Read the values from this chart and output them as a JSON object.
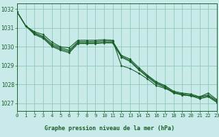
{
  "title": "Graphe pression niveau de la mer (hPa)",
  "xlim": [
    0,
    23
  ],
  "ylim": [
    1026.6,
    1032.3
  ],
  "yticks": [
    1027,
    1028,
    1029,
    1030,
    1031,
    1032
  ],
  "xticks": [
    0,
    1,
    2,
    3,
    4,
    5,
    6,
    7,
    8,
    9,
    10,
    11,
    12,
    13,
    14,
    15,
    16,
    17,
    18,
    19,
    20,
    21,
    22,
    23
  ],
  "bg_color": "#c8eae8",
  "grid_color": "#8ec8b8",
  "line_color": "#1a5e2a",
  "series": [
    [
      1031.85,
      1031.1,
      1030.8,
      1030.65,
      1030.25,
      1030.0,
      1029.95,
      1030.35,
      1030.35,
      1030.35,
      1030.38,
      1030.35,
      1029.0,
      1028.85,
      1028.6,
      1028.3,
      1027.95,
      1027.8,
      1027.6,
      1027.45,
      1027.4,
      1027.35,
      1027.55,
      1027.2
    ],
    [
      1031.85,
      1031.1,
      1030.75,
      1030.55,
      1030.15,
      1029.95,
      1029.82,
      1030.28,
      1030.28,
      1030.28,
      1030.32,
      1030.3,
      1029.55,
      1029.35,
      1028.9,
      1028.5,
      1028.15,
      1027.95,
      1027.65,
      1027.55,
      1027.5,
      1027.35,
      1027.45,
      1027.15
    ],
    [
      1031.85,
      1031.1,
      1030.7,
      1030.5,
      1030.08,
      1029.88,
      1029.75,
      1030.22,
      1030.22,
      1030.22,
      1030.25,
      1030.25,
      1029.5,
      1029.28,
      1028.82,
      1028.45,
      1028.1,
      1027.9,
      1027.6,
      1027.5,
      1027.45,
      1027.3,
      1027.4,
      1027.1
    ],
    [
      1031.85,
      1031.1,
      1030.65,
      1030.45,
      1030.02,
      1029.82,
      1029.68,
      1030.17,
      1030.17,
      1030.17,
      1030.2,
      1030.2,
      1029.45,
      1029.22,
      1028.78,
      1028.4,
      1028.05,
      1027.85,
      1027.55,
      1027.45,
      1027.4,
      1027.25,
      1027.35,
      1027.05
    ]
  ]
}
